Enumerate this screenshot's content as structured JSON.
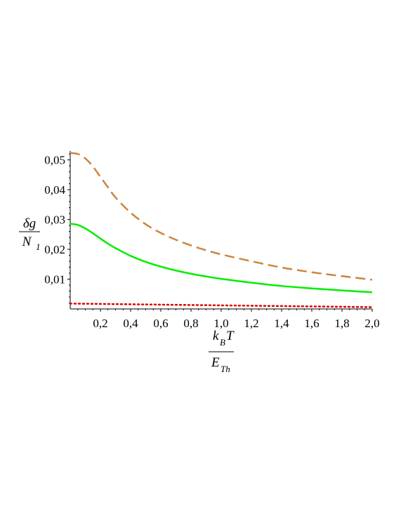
{
  "chart_data": {
    "type": "line",
    "title": "",
    "xlabel": {
      "num_main": "k",
      "num_sub": "B",
      "num_rest": "T",
      "den_main": "E",
      "den_sub": "Th"
    },
    "ylabel": {
      "num": "δg",
      "den_main": "N",
      "den_sub": "1"
    },
    "xlim": [
      0,
      2.0
    ],
    "ylim": [
      0,
      0.053
    ],
    "x_ticks": [
      0.2,
      0.4,
      0.6,
      0.8,
      1.0,
      1.2,
      1.4,
      1.6,
      1.8,
      2.0
    ],
    "x_tick_labels": [
      "0,2",
      "0,4",
      "0,6",
      "0,8",
      "1,0",
      "1,2",
      "1,4",
      "1,6",
      "1,8",
      "2,0"
    ],
    "y_ticks": [
      0.01,
      0.02,
      0.03,
      0.04,
      0.05
    ],
    "y_tick_labels": [
      "0,01",
      "0,02",
      "0,03",
      "0,04",
      "0,05"
    ],
    "grid": false,
    "legend": "none",
    "series": [
      {
        "color": "#cd853f",
        "style": "dashed",
        "x": [
          0.0,
          0.05,
          0.1,
          0.15,
          0.2,
          0.25,
          0.3,
          0.4,
          0.5,
          0.6,
          0.7,
          0.8,
          0.9,
          1.0,
          1.2,
          1.4,
          1.6,
          1.8,
          2.0
        ],
        "y": [
          0.0523,
          0.052,
          0.0505,
          0.0478,
          0.0443,
          0.0408,
          0.0374,
          0.0323,
          0.0284,
          0.0255,
          0.0232,
          0.0213,
          0.0197,
          0.0183,
          0.016,
          0.0139,
          0.0123,
          0.011,
          0.0098
        ]
      },
      {
        "color": "#00ee00",
        "style": "solid",
        "x": [
          0.0,
          0.05,
          0.1,
          0.15,
          0.2,
          0.25,
          0.3,
          0.4,
          0.5,
          0.6,
          0.7,
          0.8,
          0.9,
          1.0,
          1.2,
          1.4,
          1.6,
          1.8,
          2.0
        ],
        "y": [
          0.0286,
          0.0282,
          0.027,
          0.0254,
          0.0236,
          0.0219,
          0.0204,
          0.0178,
          0.0158,
          0.0142,
          0.0129,
          0.0118,
          0.0109,
          0.0101,
          0.0088,
          0.0077,
          0.0069,
          0.0062,
          0.0056
        ]
      },
      {
        "color": "#dd0000",
        "style": "dotted",
        "x": [
          0.0,
          0.5,
          1.0,
          1.5,
          2.0
        ],
        "y": [
          0.0018,
          0.0015,
          0.0012,
          0.0009,
          0.0006
        ]
      }
    ]
  }
}
